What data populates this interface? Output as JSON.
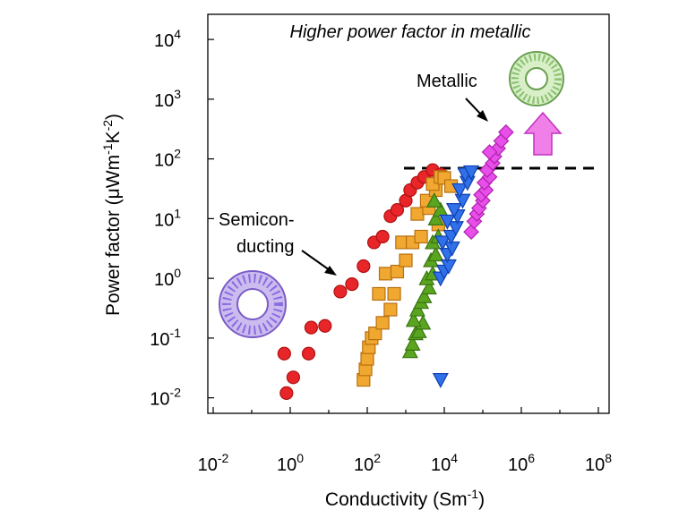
{
  "chart_data": {
    "type": "scatter",
    "title": "Higher power factor in metallic",
    "xlabel": {
      "base": "Conductivity (Sm",
      "sup": "-1",
      "tail": ")"
    },
    "ylabel": {
      "a": "Power factor (",
      "mu": "μ",
      "b": "Wm",
      "sup1": "-1",
      "c": "K",
      "sup2": "-2",
      "d": ")"
    },
    "x_scale": "log",
    "y_scale": "log",
    "xlim": [
      0.01,
      100000000
    ],
    "ylim": [
      0.007,
      20000
    ],
    "x_ticks": [
      {
        "value": 0.01,
        "base": "10",
        "exp": "-2"
      },
      {
        "value": 1,
        "base": "10",
        "exp": "0"
      },
      {
        "value": 100,
        "base": "10",
        "exp": "2"
      },
      {
        "value": 10000,
        "base": "10",
        "exp": "4"
      },
      {
        "value": 1000000,
        "base": "10",
        "exp": "6"
      },
      {
        "value": 100000000,
        "base": "10",
        "exp": "8"
      }
    ],
    "y_ticks": [
      {
        "value": 0.01,
        "base": "10",
        "exp": "-2"
      },
      {
        "value": 0.1,
        "base": "10",
        "exp": "-1"
      },
      {
        "value": 1,
        "base": "10",
        "exp": "0"
      },
      {
        "value": 10,
        "base": "10",
        "exp": "1"
      },
      {
        "value": 100,
        "base": "10",
        "exp": "2"
      },
      {
        "value": 1000,
        "base": "10",
        "exp": "3"
      },
      {
        "value": 10000,
        "base": "10",
        "exp": "4"
      }
    ],
    "grid": false,
    "legend": "none",
    "reference_line": {
      "y": 70,
      "x_from": 900,
      "style": "dashed",
      "color": "#000000"
    },
    "annotations": [
      {
        "text": "Metallic",
        "arrow": true
      },
      {
        "text_lines": [
          "Semicon-",
          "ducting"
        ],
        "arrow": true
      }
    ],
    "series": [
      {
        "marker": "circle",
        "color": "#e8262a",
        "points": [
          [
            0.8,
            0.012
          ],
          [
            1.2,
            0.022
          ],
          [
            0.7,
            0.055
          ],
          [
            3,
            0.055
          ],
          [
            3.5,
            0.15
          ],
          [
            8,
            0.16
          ],
          [
            20,
            0.6
          ],
          [
            40,
            0.8
          ],
          [
            80,
            1.6
          ],
          [
            150,
            4
          ],
          [
            250,
            5
          ],
          [
            400,
            11
          ],
          [
            600,
            14
          ],
          [
            1000,
            20
          ],
          [
            1300,
            30
          ],
          [
            2000,
            40
          ],
          [
            3000,
            50
          ],
          [
            5000,
            65
          ],
          [
            8000,
            55
          ]
        ]
      },
      {
        "marker": "square",
        "color": "#f0a830",
        "points": [
          [
            80,
            0.02
          ],
          [
            90,
            0.03
          ],
          [
            100,
            0.045
          ],
          [
            110,
            0.07
          ],
          [
            130,
            0.1
          ],
          [
            160,
            0.12
          ],
          [
            250,
            0.18
          ],
          [
            400,
            0.3
          ],
          [
            200,
            0.55
          ],
          [
            500,
            0.55
          ],
          [
            300,
            1.2
          ],
          [
            600,
            1.3
          ],
          [
            1000,
            2
          ],
          [
            800,
            4
          ],
          [
            1500,
            4
          ],
          [
            2500,
            5
          ],
          [
            2000,
            12
          ],
          [
            4000,
            15
          ],
          [
            3500,
            20
          ],
          [
            6000,
            30
          ],
          [
            5000,
            38
          ],
          [
            8000,
            50
          ],
          [
            10000,
            48
          ],
          [
            15000,
            35
          ],
          [
            7000,
            8
          ]
        ]
      },
      {
        "marker": "triangle-up",
        "color": "#5aa520",
        "points": [
          [
            1300,
            0.06
          ],
          [
            1500,
            0.08
          ],
          [
            1800,
            0.12
          ],
          [
            2200,
            0.13
          ],
          [
            2800,
            0.18
          ],
          [
            1600,
            0.2
          ],
          [
            2000,
            0.3
          ],
          [
            2500,
            0.4
          ],
          [
            3000,
            0.5
          ],
          [
            4000,
            0.7
          ],
          [
            3500,
            1.0
          ],
          [
            5000,
            1.2
          ],
          [
            4500,
            2.0
          ],
          [
            6000,
            2.5
          ],
          [
            5000,
            4
          ],
          [
            7000,
            5
          ],
          [
            6000,
            10
          ],
          [
            8000,
            14
          ],
          [
            5500,
            20
          ]
        ]
      },
      {
        "marker": "triangle-down",
        "color": "#3070e8",
        "points": [
          [
            8000,
            0.02
          ],
          [
            8000,
            1.0
          ],
          [
            10000,
            1.3
          ],
          [
            13000,
            1.6
          ],
          [
            12000,
            2.5
          ],
          [
            16000,
            3.2
          ],
          [
            9000,
            4
          ],
          [
            15000,
            5
          ],
          [
            20000,
            7
          ],
          [
            12000,
            9
          ],
          [
            22000,
            11
          ],
          [
            18000,
            14
          ],
          [
            30000,
            20
          ],
          [
            25000,
            30
          ],
          [
            40000,
            40
          ],
          [
            35000,
            55
          ],
          [
            50000,
            60
          ]
        ]
      },
      {
        "marker": "diamond",
        "color": "#e84ee8",
        "points": [
          [
            50000,
            6
          ],
          [
            60000,
            9
          ],
          [
            70000,
            12
          ],
          [
            80000,
            15
          ],
          [
            100000,
            20
          ],
          [
            90000,
            25
          ],
          [
            120000,
            30
          ],
          [
            110000,
            40
          ],
          [
            150000,
            50
          ],
          [
            130000,
            65
          ],
          [
            180000,
            85
          ],
          [
            200000,
            110
          ],
          [
            250000,
            150
          ],
          [
            300000,
            200
          ],
          [
            400000,
            280
          ],
          [
            150000,
            130
          ]
        ]
      }
    ]
  }
}
